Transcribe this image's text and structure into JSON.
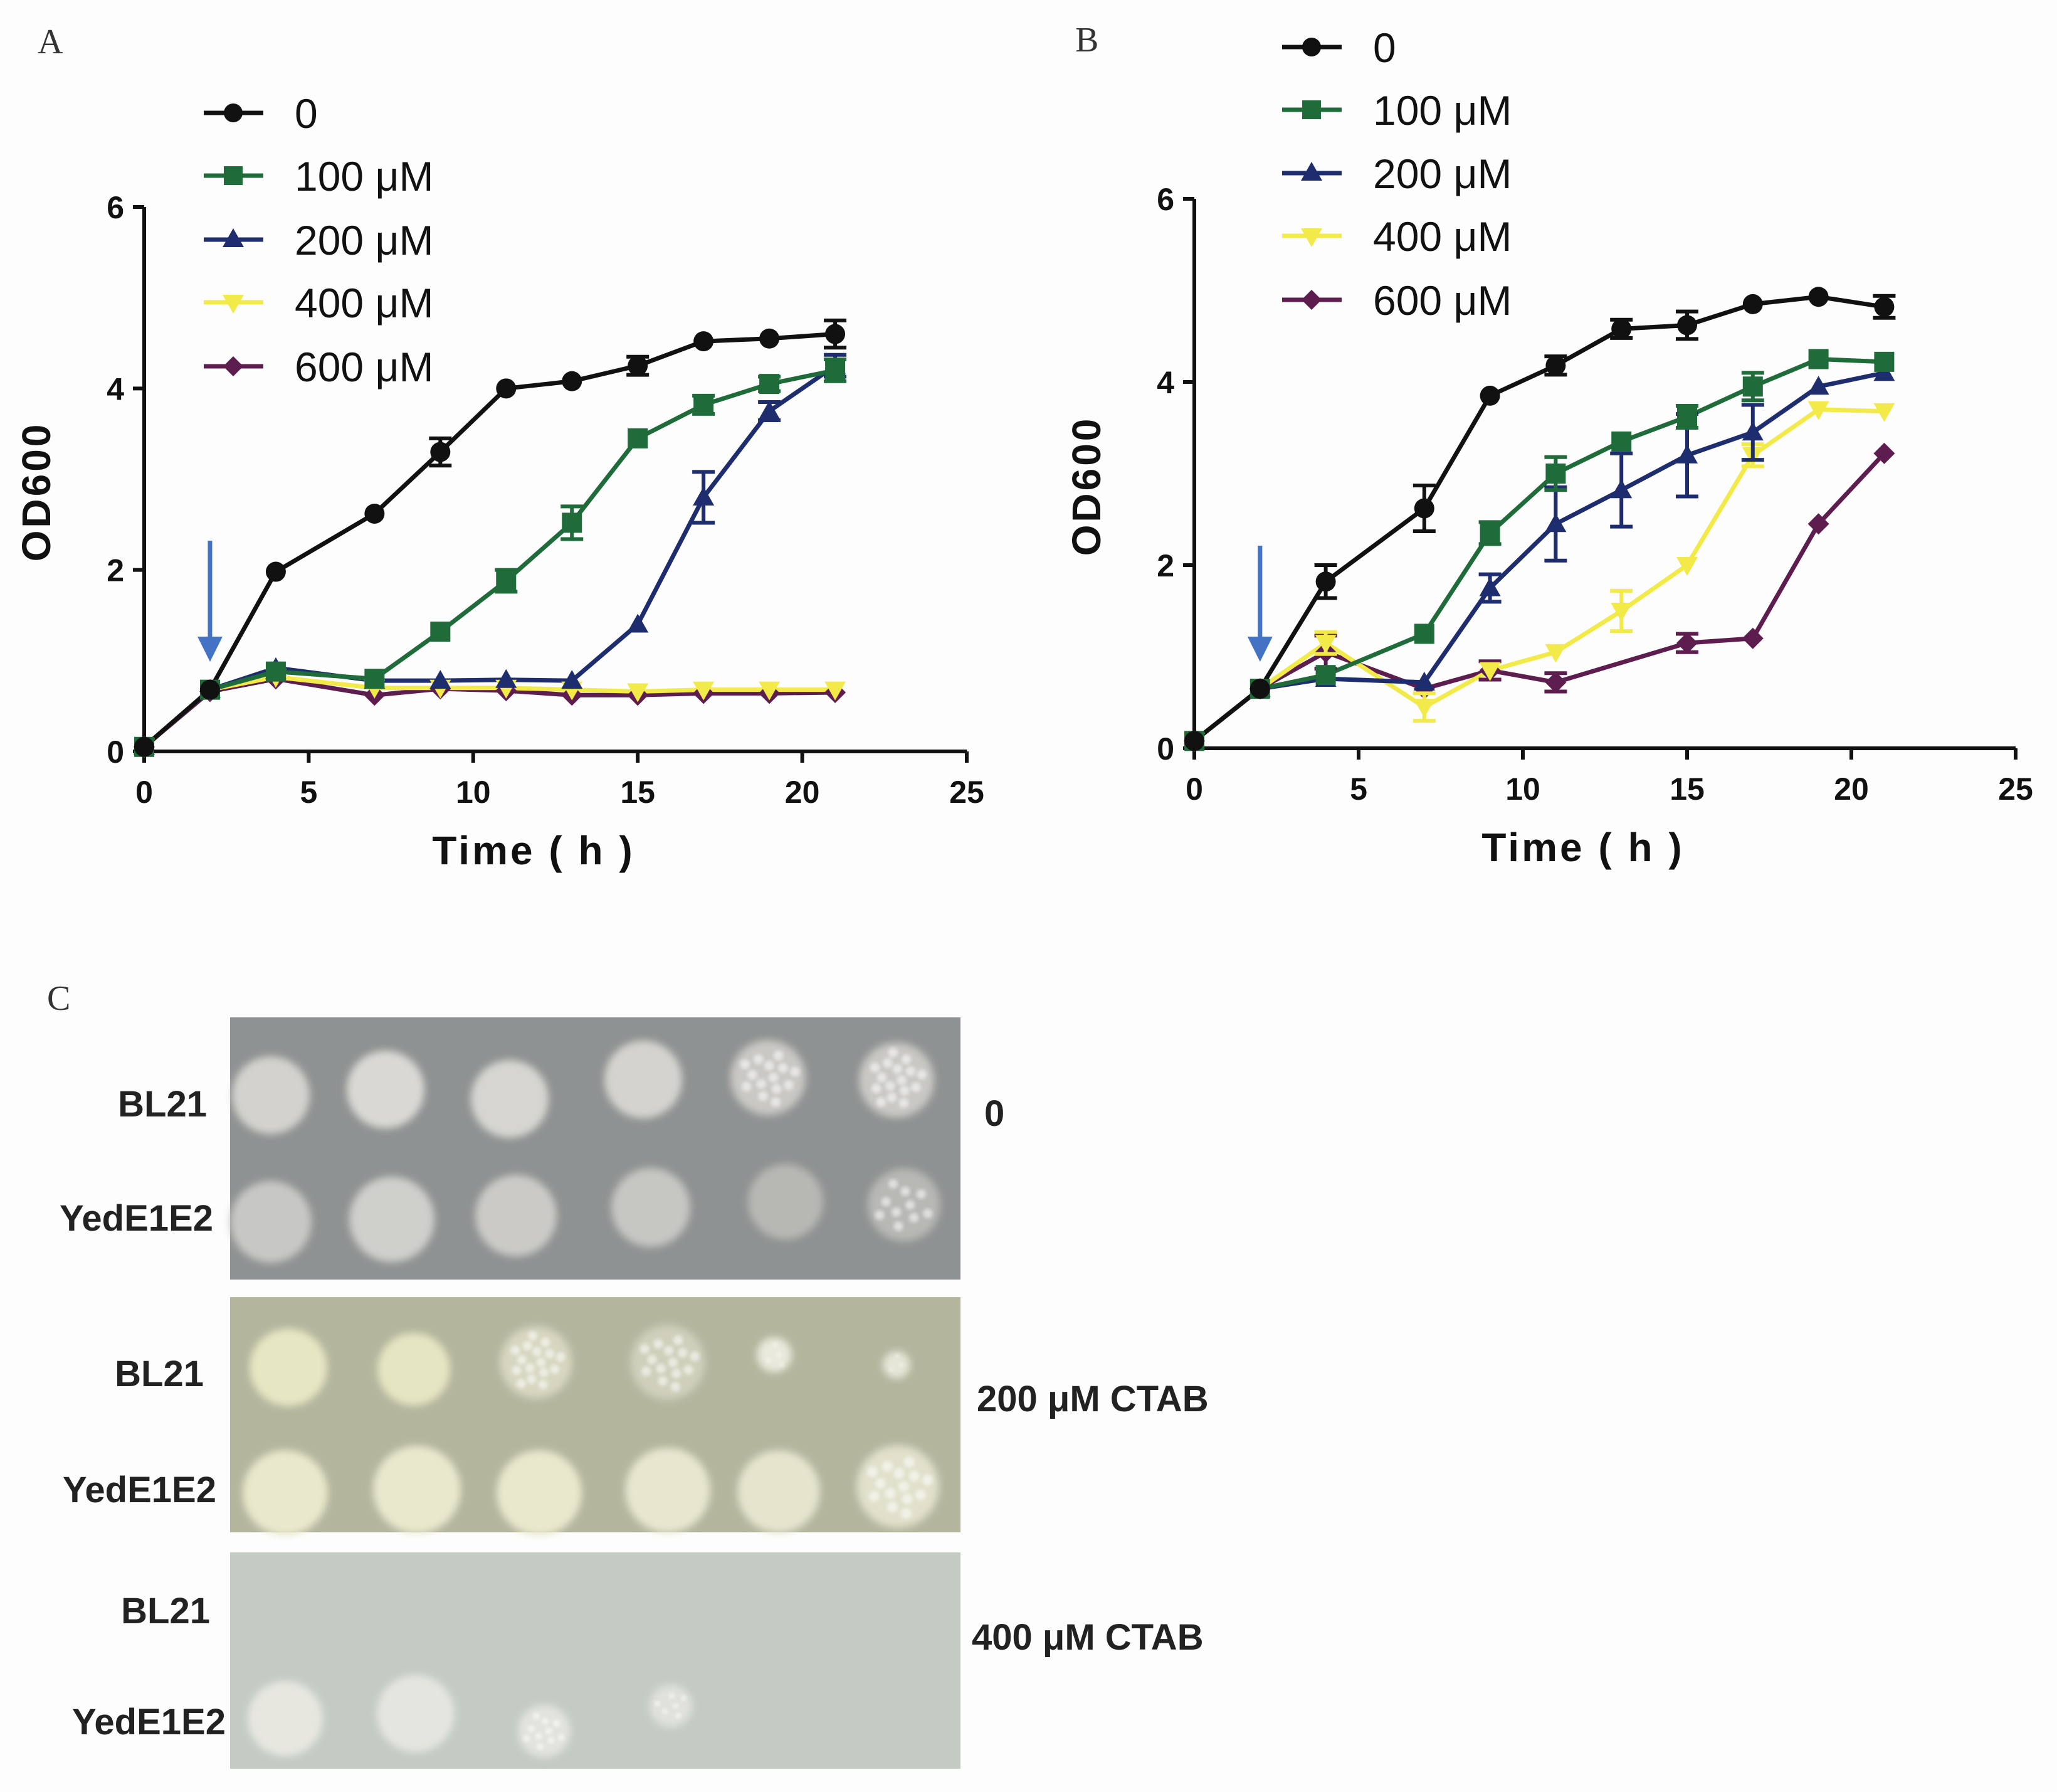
{
  "chart_data": [
    {
      "panel": "A",
      "type": "line",
      "xlabel": "Time ( h )",
      "ylabel": "OD600",
      "xlim": [
        0,
        25
      ],
      "ylim": [
        0,
        6
      ],
      "xticks": [
        "0",
        "5",
        "10",
        "15",
        "20",
        "25"
      ],
      "yticks": [
        "0",
        "2",
        "4",
        "6"
      ],
      "arrow_at_time": 2,
      "series": [
        {
          "name": "0",
          "color": "#111111",
          "marker": "circle",
          "x": [
            0,
            2,
            4,
            7,
            9,
            11,
            13,
            15,
            17,
            19,
            21
          ],
          "y": [
            0.05,
            0.68,
            1.98,
            2.62,
            3.3,
            4.0,
            4.08,
            4.25,
            4.52,
            4.55,
            4.6
          ],
          "err": [
            0,
            0,
            0,
            0,
            0.15,
            0,
            0,
            0.1,
            0,
            0,
            0.15
          ]
        },
        {
          "name": "100 μM",
          "color": "#1f6b3a",
          "marker": "square",
          "x": [
            0,
            2,
            4,
            7,
            9,
            11,
            13,
            15,
            17,
            19,
            21
          ],
          "y": [
            0.05,
            0.68,
            0.88,
            0.8,
            1.32,
            1.88,
            2.52,
            3.45,
            3.82,
            4.05,
            4.2
          ],
          "err": [
            0,
            0,
            0,
            0,
            0,
            0.12,
            0.18,
            0,
            0.1,
            0.08,
            0.12
          ]
        },
        {
          "name": "200 μM",
          "color": "#1d2d6e",
          "marker": "triangle",
          "x": [
            0,
            2,
            4,
            7,
            9,
            11,
            13,
            15,
            17,
            19,
            21
          ],
          "y": [
            0.05,
            0.68,
            0.92,
            0.78,
            0.78,
            0.79,
            0.78,
            1.4,
            2.8,
            3.75,
            4.25
          ],
          "err": [
            0,
            0,
            0,
            0,
            0,
            0,
            0,
            0,
            0.28,
            0.1,
            0.12
          ]
        },
        {
          "name": "400 μM",
          "color": "#f2ea48",
          "marker": "triangle-down",
          "x": [
            0,
            2,
            4,
            7,
            9,
            11,
            13,
            15,
            17,
            19,
            21
          ],
          "y": [
            0.05,
            0.68,
            0.82,
            0.7,
            0.7,
            0.7,
            0.68,
            0.66,
            0.68,
            0.68,
            0.68
          ],
          "err": [
            0,
            0,
            0,
            0,
            0,
            0,
            0,
            0,
            0,
            0,
            0
          ]
        },
        {
          "name": "600 μM",
          "color": "#5e1d4f",
          "marker": "diamond",
          "x": [
            0,
            2,
            4,
            7,
            9,
            11,
            13,
            15,
            17,
            19,
            21
          ],
          "y": [
            0.05,
            0.66,
            0.8,
            0.62,
            0.69,
            0.67,
            0.62,
            0.62,
            0.64,
            0.64,
            0.65
          ],
          "err": [
            0,
            0,
            0,
            0,
            0,
            0,
            0,
            0,
            0,
            0,
            0
          ]
        }
      ]
    },
    {
      "panel": "B",
      "type": "line",
      "xlabel": "Time ( h )",
      "ylabel": "OD600",
      "xlim": [
        0,
        25
      ],
      "ylim": [
        0,
        6
      ],
      "xticks": [
        "0",
        "5",
        "10",
        "15",
        "20",
        "25"
      ],
      "yticks": [
        "0",
        "2",
        "4",
        "6"
      ],
      "arrow_at_time": 2,
      "series": [
        {
          "name": "0",
          "color": "#111111",
          "marker": "circle",
          "x": [
            0,
            2,
            4,
            7,
            9,
            11,
            13,
            15,
            17,
            19,
            21
          ],
          "y": [
            0.08,
            0.65,
            1.82,
            2.62,
            3.85,
            4.18,
            4.58,
            4.62,
            4.85,
            4.93,
            4.82
          ],
          "err": [
            0,
            0,
            0.18,
            0.25,
            0,
            0.1,
            0.1,
            0.15,
            0,
            0,
            0.12
          ]
        },
        {
          "name": "100 μM",
          "color": "#1f6b3a",
          "marker": "square",
          "x": [
            0,
            2,
            4,
            7,
            9,
            11,
            13,
            15,
            17,
            19,
            21
          ],
          "y": [
            0.08,
            0.65,
            0.8,
            1.25,
            2.35,
            3.0,
            3.35,
            3.62,
            3.95,
            4.25,
            4.22
          ],
          "err": [
            0,
            0,
            0,
            0,
            0.12,
            0.18,
            0,
            0.12,
            0.15,
            0,
            0
          ]
        },
        {
          "name": "200 μM",
          "color": "#1d2d6e",
          "marker": "triangle",
          "x": [
            0,
            2,
            4,
            7,
            9,
            11,
            13,
            15,
            17,
            19,
            21
          ],
          "y": [
            0.08,
            0.65,
            0.76,
            0.72,
            1.75,
            2.45,
            2.82,
            3.2,
            3.45,
            3.95,
            4.1
          ],
          "err": [
            0,
            0,
            0,
            0,
            0.15,
            0.4,
            0.4,
            0.45,
            0.3,
            0,
            0
          ]
        },
        {
          "name": "400 μM",
          "color": "#f2ea48",
          "marker": "triangle-down",
          "x": [
            0,
            2,
            4,
            7,
            9,
            11,
            13,
            15,
            17,
            19,
            21
          ],
          "y": [
            0.08,
            0.65,
            1.15,
            0.45,
            0.85,
            1.05,
            1.5,
            2.0,
            3.2,
            3.7,
            3.68
          ],
          "err": [
            0,
            0,
            0.12,
            0.15,
            0,
            0,
            0.22,
            0,
            0.12,
            0,
            0
          ]
        },
        {
          "name": "600 μM",
          "color": "#5e1d4f",
          "marker": "diamond",
          "x": [
            0,
            2,
            4,
            7,
            9,
            11,
            13,
            15,
            17,
            19,
            21
          ],
          "y": [
            0.08,
            0.65,
            1.05,
            0.65,
            0.85,
            0.72,
            null,
            1.15,
            1.2,
            2.45,
            3.22
          ],
          "err": [
            0,
            0,
            0.18,
            0,
            0.1,
            0.1,
            0,
            0.1,
            0,
            0,
            0
          ]
        }
      ]
    }
  ],
  "figure": {
    "panel_a": "A",
    "panel_b": "B",
    "panel_c": "C",
    "legend": {
      "item_0": "0",
      "item_100": "100 μM",
      "item_200": "200 μM",
      "item_400": "400 μM",
      "item_600": "600 μM"
    },
    "plates": {
      "plate_1": {
        "row_1": "BL21",
        "row_2": "YedE1E2",
        "condition": "0"
      },
      "plate_2": {
        "row_1": "BL21",
        "row_2": "YedE1E2",
        "condition": "200 μM CTAB"
      },
      "plate_3": {
        "row_1": "BL21",
        "row_2": "YedE1E2",
        "condition": "400 μM CTAB"
      }
    },
    "colors": {
      "plate_1_bg": "#8f9292",
      "plate_2_bg": "#b3b59d",
      "plate_3_bg": "#c3cbc3",
      "arrow": "#4472c4"
    }
  }
}
